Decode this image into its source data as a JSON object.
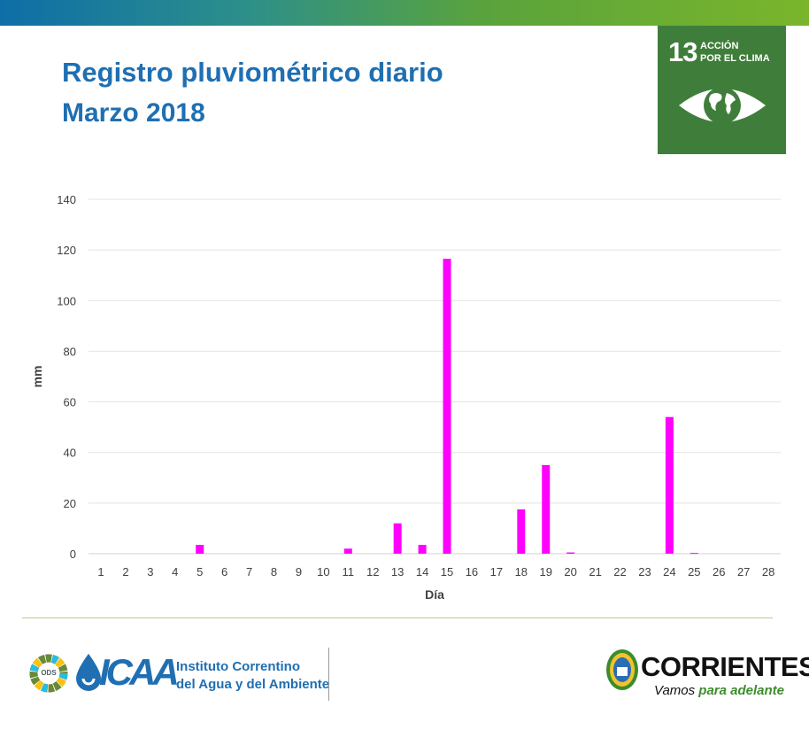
{
  "header": {
    "title": "Registro pluviométrico diario",
    "subtitle": "Marzo 2018"
  },
  "sdg_badge": {
    "number": "13",
    "label_line1": "ACCIÓN",
    "label_line2": "POR EL CLIMA",
    "icon": "eye-earth-icon",
    "color": "#3f7e3a"
  },
  "chart_data": {
    "type": "bar",
    "categories": [
      "1",
      "2",
      "3",
      "4",
      "5",
      "6",
      "7",
      "8",
      "9",
      "10",
      "11",
      "12",
      "13",
      "14",
      "15",
      "16",
      "17",
      "18",
      "19",
      "20",
      "21",
      "22",
      "23",
      "24",
      "25",
      "26",
      "27",
      "28"
    ],
    "values": [
      0,
      0,
      0,
      0,
      3.5,
      0,
      0,
      0,
      0,
      0,
      2,
      0,
      12,
      3.5,
      116.5,
      0,
      0,
      17.5,
      35,
      0.5,
      0,
      0,
      0,
      54,
      0.3,
      0,
      0,
      0
    ],
    "xlabel": "Día",
    "ylabel": "mm",
    "ylim": [
      0,
      140
    ],
    "yticks": [
      0,
      20,
      40,
      60,
      80,
      100,
      120,
      140
    ],
    "grid": true,
    "bar_color": "#ff00ff"
  },
  "footer": {
    "ods_text": "ODS",
    "icaa_word": "ICAA",
    "icaa_name_line1": "Instituto Correntino",
    "icaa_name_line2": "del Agua y del Ambiente",
    "corrientes_word": "CORRIENTES",
    "slogan_part1": "Vamos ",
    "slogan_part2": "para adelante",
    "brand_blue": "#1f6fb2",
    "brand_green": "#3c8c2b"
  }
}
